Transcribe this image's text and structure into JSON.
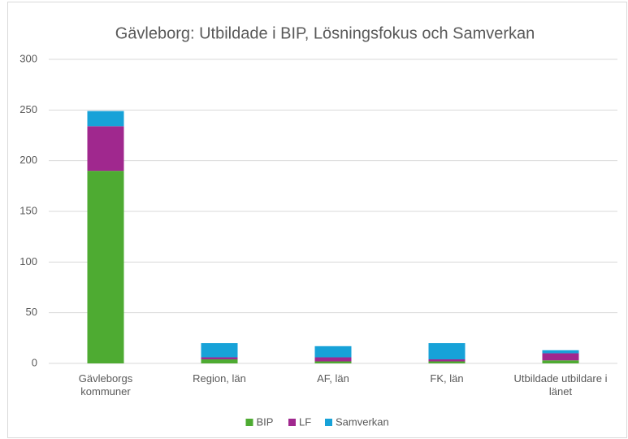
{
  "chart_data": {
    "type": "bar",
    "stacked": true,
    "title": "Gävleborg: Utbildade i BIP, Lösningsfokus och Samverkan",
    "categories": [
      "Gävleborgs kommuner",
      "Region, län",
      "AF, län",
      "FK, län",
      "Utbildade utbildare i länet"
    ],
    "series": [
      {
        "name": "BIP",
        "color": "#4eab32",
        "values": [
          190,
          4,
          2,
          2,
          3
        ]
      },
      {
        "name": "LF",
        "color": "#a0288e",
        "values": [
          44,
          2,
          4,
          2,
          7
        ]
      },
      {
        "name": "Samverkan",
        "color": "#17a2d8",
        "values": [
          15,
          14,
          11,
          16,
          3
        ]
      }
    ],
    "ylim": [
      0,
      300
    ],
    "yticks": [
      0,
      50,
      100,
      150,
      200,
      250,
      300
    ],
    "grid": true
  }
}
